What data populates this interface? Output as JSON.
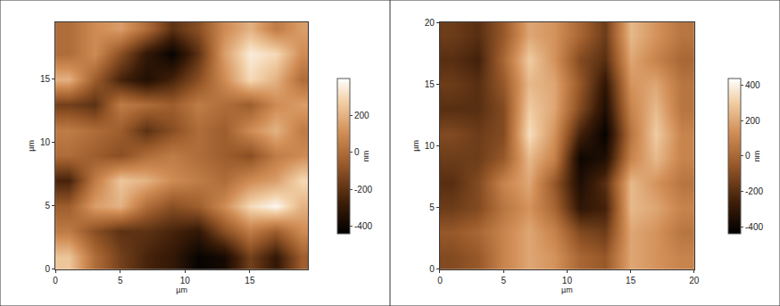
{
  "chart_data": [
    {
      "type": "heatmap",
      "x_label": "µm",
      "y_label": "µm",
      "x": [
        1,
        3,
        5,
        7,
        9,
        11,
        13,
        15,
        17,
        19
      ],
      "y": [
        1,
        3,
        5,
        7,
        9,
        11,
        13,
        15,
        17,
        19
      ],
      "z": [
        [
          250,
          0,
          -150,
          -250,
          -300,
          -420,
          -380,
          -150,
          -300,
          -50
        ],
        [
          50,
          -100,
          -200,
          -200,
          -250,
          -300,
          -100,
          50,
          -50,
          100
        ],
        [
          -50,
          150,
          200,
          0,
          -100,
          -50,
          100,
          300,
          380,
          200
        ],
        [
          -250,
          50,
          250,
          200,
          100,
          50,
          0,
          100,
          150,
          300
        ],
        [
          0,
          -50,
          -100,
          0,
          50,
          0,
          -50,
          -100,
          50,
          100
        ],
        [
          50,
          0,
          -50,
          -200,
          -100,
          0,
          -50,
          100,
          200,
          50
        ],
        [
          -150,
          -200,
          50,
          0,
          -50,
          50,
          0,
          -50,
          100,
          150
        ],
        [
          200,
          -50,
          -250,
          -350,
          -250,
          -100,
          100,
          300,
          200,
          0
        ],
        [
          0,
          100,
          -100,
          -300,
          -420,
          -200,
          150,
          350,
          300,
          100
        ],
        [
          0,
          100,
          150,
          0,
          -200,
          -100,
          100,
          200,
          50,
          150
        ]
      ],
      "xlim": [
        0,
        19.5
      ],
      "ylim": [
        0,
        19.5
      ],
      "xticks": [
        0,
        5,
        10,
        15
      ],
      "yticks": [
        0,
        5,
        10,
        15
      ],
      "zlim": [
        -440,
        400
      ],
      "zticks": [
        -400,
        -200,
        0,
        200
      ],
      "colorbar_label": "nm"
    },
    {
      "type": "heatmap",
      "x_label": "µm",
      "y_label": "µm",
      "x": [
        1,
        3,
        5,
        7,
        9,
        11,
        13,
        15,
        17,
        19
      ],
      "y": [
        1,
        3,
        5,
        7,
        9,
        11,
        13,
        15,
        17,
        19
      ],
      "z": [
        [
          -100,
          -50,
          100,
          200,
          150,
          0,
          -50,
          200,
          150,
          100
        ],
        [
          -50,
          0,
          100,
          200,
          100,
          -100,
          -150,
          200,
          150,
          50
        ],
        [
          -150,
          -100,
          50,
          150,
          0,
          -300,
          -250,
          250,
          200,
          100
        ],
        [
          -200,
          -100,
          100,
          200,
          -50,
          -350,
          -200,
          250,
          150,
          50
        ],
        [
          -150,
          -150,
          -50,
          250,
          100,
          -400,
          -350,
          100,
          250,
          100
        ],
        [
          -100,
          -150,
          -100,
          350,
          150,
          -250,
          -420,
          50,
          300,
          100
        ],
        [
          -200,
          -200,
          -100,
          300,
          200,
          -100,
          -350,
          100,
          250,
          50
        ],
        [
          -150,
          -200,
          -50,
          250,
          200,
          -50,
          -300,
          150,
          200,
          50
        ],
        [
          -200,
          -250,
          0,
          300,
          150,
          -100,
          -200,
          200,
          100,
          0
        ],
        [
          -150,
          -200,
          -50,
          200,
          150,
          0,
          -150,
          250,
          150,
          50
        ]
      ],
      "xlim": [
        0,
        20
      ],
      "ylim": [
        0,
        20
      ],
      "xticks": [
        0,
        5,
        10,
        15,
        20
      ],
      "yticks": [
        0,
        5,
        10,
        15,
        20
      ],
      "zlim": [
        -440,
        440
      ],
      "zticks": [
        -400,
        -200,
        0,
        200,
        400
      ],
      "colorbar_label": "nm"
    }
  ]
}
